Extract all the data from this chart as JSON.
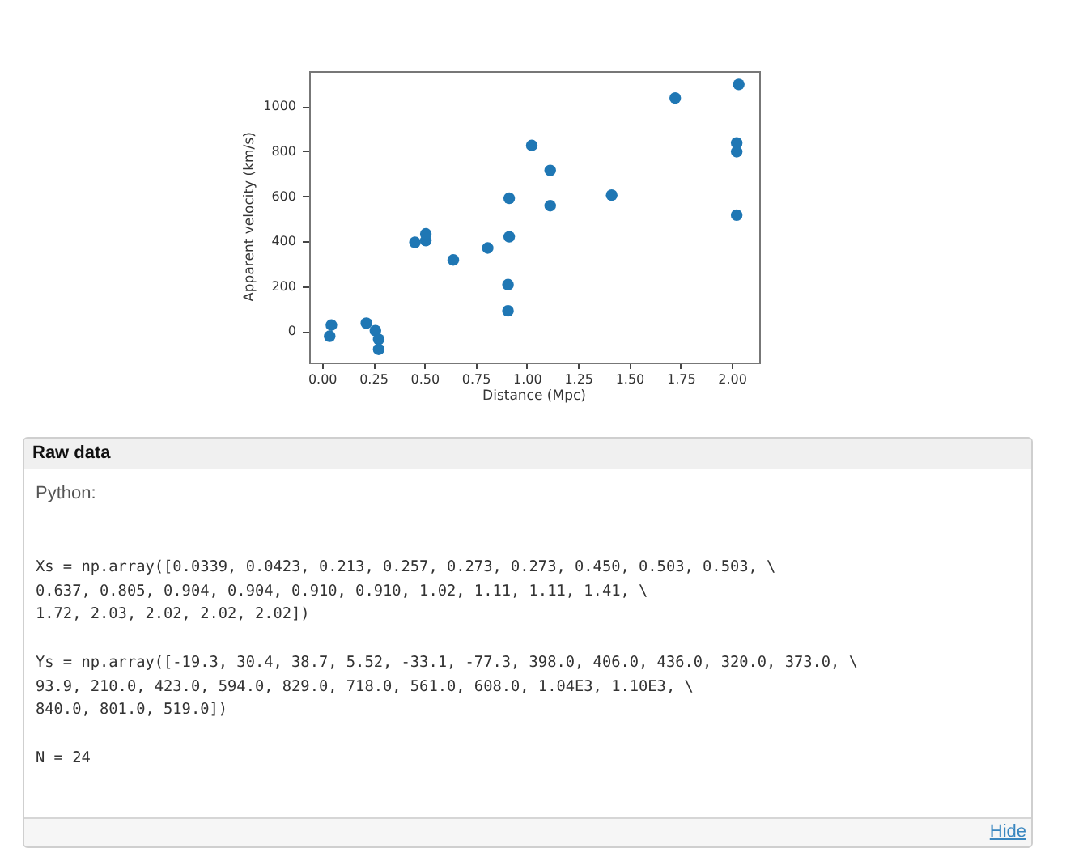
{
  "chart_data": {
    "type": "scatter",
    "xlabel": "Distance (Mpc)",
    "ylabel": "Apparent velocity (km/s)",
    "x": [
      0.0339,
      0.0423,
      0.213,
      0.257,
      0.273,
      0.273,
      0.45,
      0.503,
      0.503,
      0.637,
      0.805,
      0.904,
      0.904,
      0.91,
      0.91,
      1.02,
      1.11,
      1.11,
      1.41,
      1.72,
      2.03,
      2.02,
      2.02,
      2.02
    ],
    "values": [
      -19.3,
      30.4,
      38.7,
      5.52,
      -33.1,
      -77.3,
      398.0,
      406.0,
      436.0,
      320.0,
      373.0,
      93.9,
      210.0,
      423.0,
      594.0,
      829.0,
      718.0,
      561.0,
      608.0,
      1040,
      1100,
      840.0,
      801.0,
      519.0
    ],
    "color": "#1f77b4",
    "marker": "circle",
    "grid": false,
    "legend": false,
    "xlim": [
      -0.066,
      2.13
    ],
    "ylim": [
      -136,
      1159
    ],
    "xticks": [
      {
        "value": 0,
        "label": "0.00"
      },
      {
        "value": 0.25,
        "label": "0.25"
      },
      {
        "value": 0.5,
        "label": "0.50"
      },
      {
        "value": 0.75,
        "label": "0.75"
      },
      {
        "value": 1,
        "label": "1.00"
      },
      {
        "value": 1.25,
        "label": "1.25"
      },
      {
        "value": 1.5,
        "label": "1.50"
      },
      {
        "value": 1.75,
        "label": "1.75"
      },
      {
        "value": 2,
        "label": "2.00"
      }
    ],
    "yticks": [
      0,
      200,
      400,
      600,
      800,
      1000
    ],
    "annotations": [
      "Raw data",
      "Python:",
      "Xs = np.array([0.0339, 0.0423, 0.213, 0.257, 0.273, 0.273, 0.450, 0.503, 0.503, \\\n0.637, 0.805, 0.904, 0.904, 0.910, 0.910, 1.02, 1.11, 1.11, 1.41, \\\n1.72, 2.03, 2.02, 2.02, 2.02])",
      "Ys = np.array([-19.3, 30.4, 38.7, 5.52, -33.1, -77.3, 398.0, 406.0, 436.0, 320.0, 373.0, \\\n93.9, 210.0, 423.0, 594.0, 829.0, 718.0, 561.0, 608.0, 1.04E3, 1.10E3, \\\n840.0, 801.0, 519.0])",
      "N = 24",
      "Hide"
    ]
  }
}
